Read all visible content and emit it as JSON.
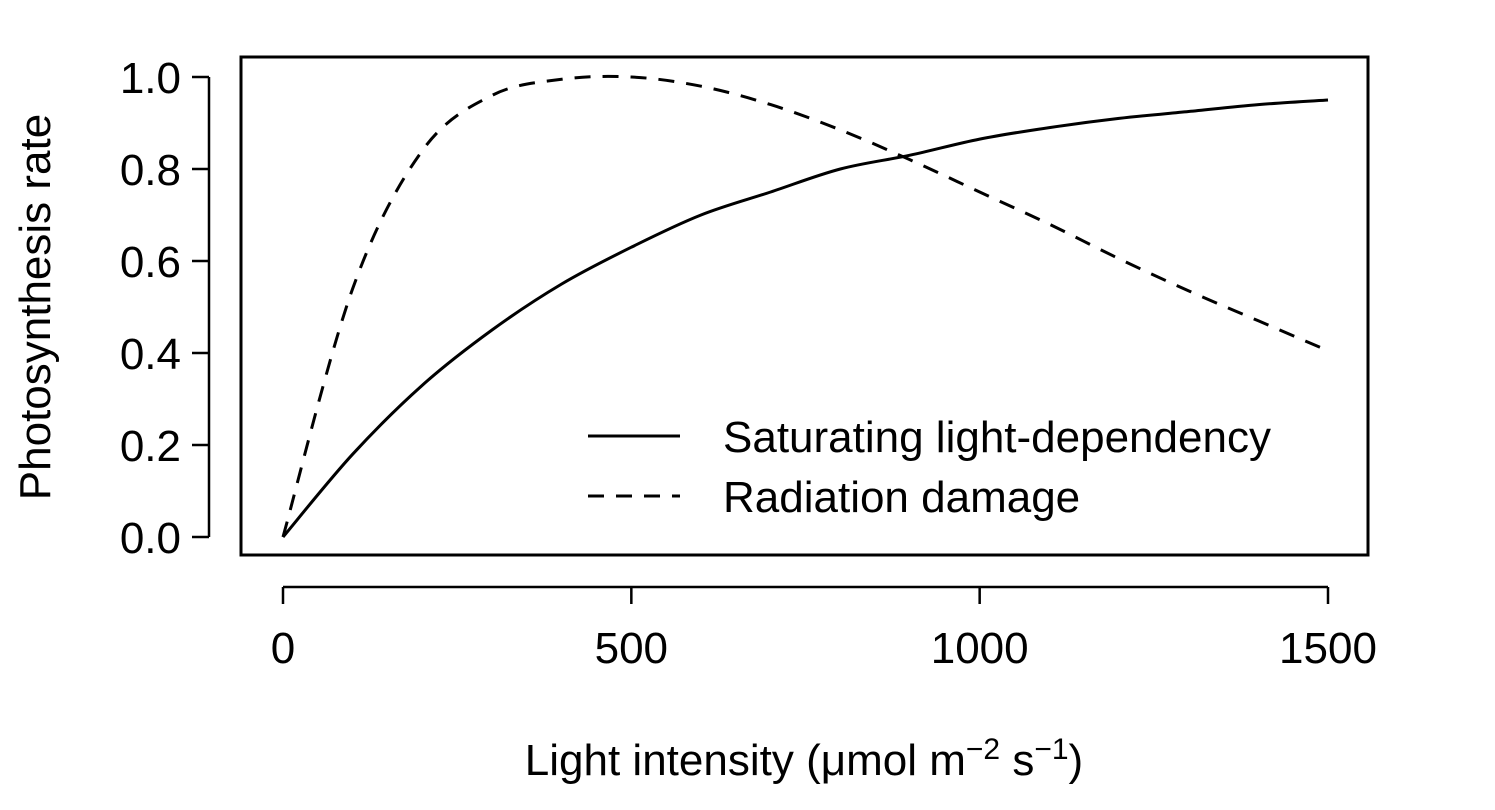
{
  "chart_data": {
    "type": "line",
    "xlabel": {
      "prefix": "Light intensity (",
      "mu": "μ",
      "unit_a": "mol m",
      "exp_a": "−2",
      "unit_b": " s",
      "exp_b": "−1",
      "suffix": ")"
    },
    "ylabel": "Photosynthesis rate",
    "xlim": [
      0,
      1500
    ],
    "ylim": [
      0,
      1.0
    ],
    "x_ticks": [
      0,
      500,
      1000,
      1500
    ],
    "x_tick_labels": [
      "0",
      "500",
      "1000",
      "1500"
    ],
    "y_ticks": [
      0,
      0.2,
      0.4,
      0.6,
      0.8,
      1.0
    ],
    "y_tick_labels": [
      "0.0",
      "0.2",
      "0.4",
      "0.6",
      "0.8",
      "1.0"
    ],
    "grid": false,
    "legend_position": "bottom-right",
    "series": [
      {
        "name": "Saturating light-dependency",
        "line_style": "solid",
        "color": "#000000",
        "x": [
          0,
          100,
          200,
          300,
          400,
          500,
          600,
          700,
          800,
          900,
          1000,
          1100,
          1200,
          1300,
          1400,
          1500
        ],
        "y": [
          0.0,
          0.18,
          0.33,
          0.45,
          0.55,
          0.63,
          0.7,
          0.75,
          0.8,
          0.83,
          0.865,
          0.89,
          0.91,
          0.925,
          0.94,
          0.95
        ]
      },
      {
        "name": "Radiation damage",
        "line_style": "dashed",
        "color": "#000000",
        "x": [
          0,
          100,
          200,
          300,
          400,
          500,
          600,
          700,
          800,
          900,
          1000,
          1100,
          1200,
          1300,
          1400,
          1500
        ],
        "y": [
          0.0,
          0.54,
          0.84,
          0.96,
          0.995,
          1.0,
          0.98,
          0.94,
          0.885,
          0.82,
          0.75,
          0.68,
          0.605,
          0.535,
          0.47,
          0.405
        ]
      }
    ]
  }
}
